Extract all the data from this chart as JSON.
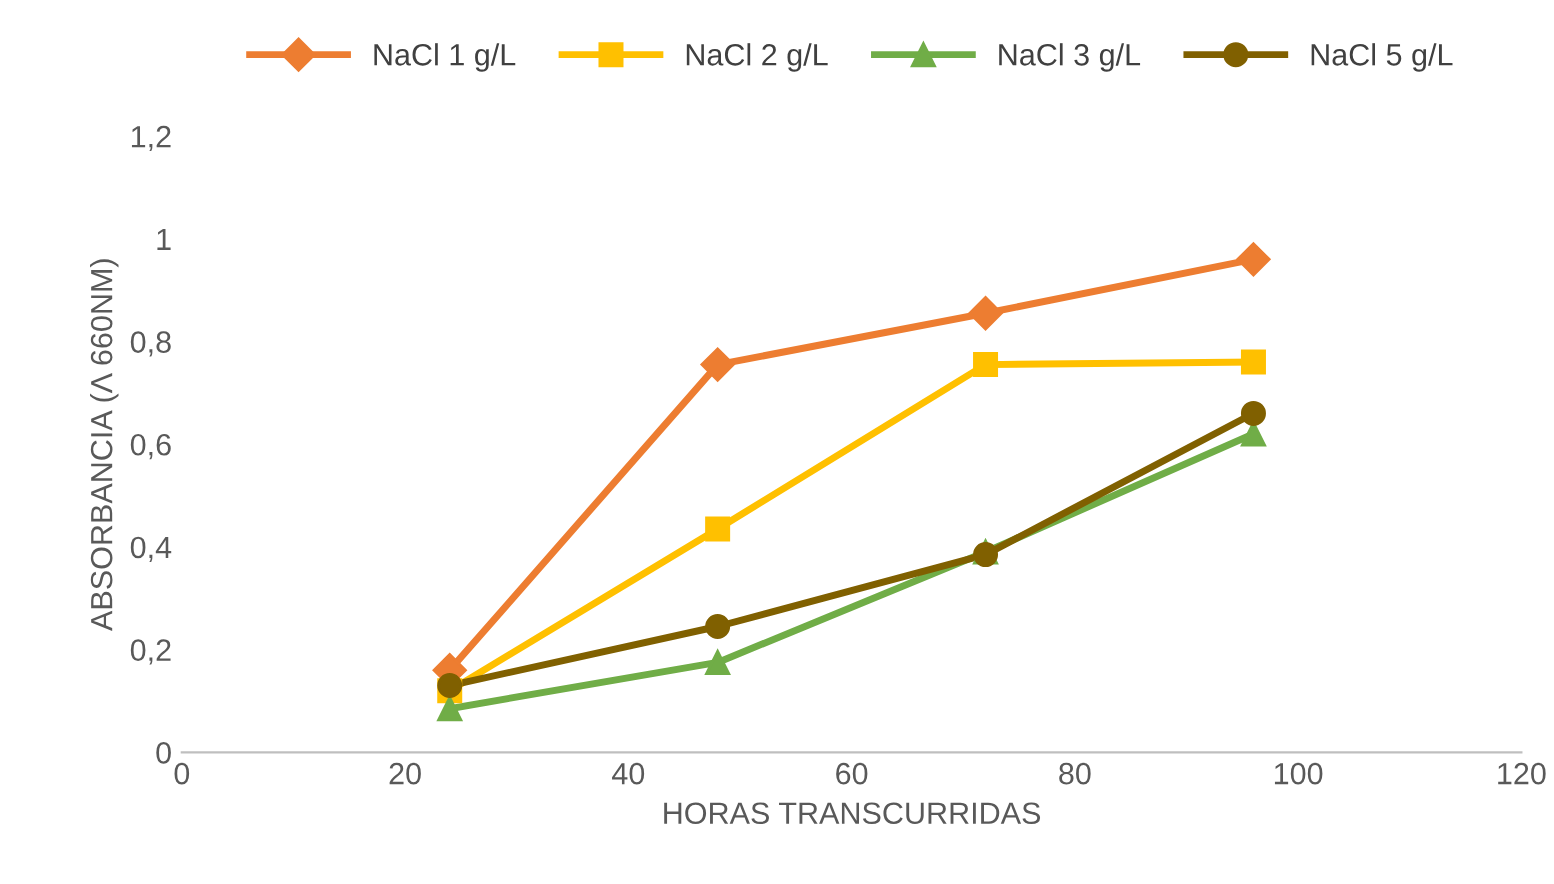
{
  "chart_data": {
    "type": "line",
    "xlabel": "HORAS TRANSCURRIDAS",
    "ylabel": "ABSORBANCIA (Λ 660NM)",
    "x": [
      24,
      48,
      72,
      96
    ],
    "series": [
      {
        "name": "NaCl 1 g/L",
        "color": "#ed7d31",
        "marker": "diamond",
        "values": [
          0.16,
          0.755,
          0.855,
          0.96
        ]
      },
      {
        "name": "NaCl 2 g/L",
        "color": "#ffc000",
        "marker": "square",
        "values": [
          0.12,
          0.435,
          0.755,
          0.76
        ]
      },
      {
        "name": "NaCl 3 g/L",
        "color": "#70ad47",
        "marker": "triangle",
        "values": [
          0.085,
          0.175,
          0.39,
          0.62
        ]
      },
      {
        "name": "NaCl 5 g/L",
        "color": "#806000",
        "marker": "circle",
        "values": [
          0.13,
          0.245,
          0.385,
          0.66
        ]
      }
    ],
    "xlim": [
      0,
      120
    ],
    "xticks": [
      0,
      20,
      40,
      60,
      80,
      100,
      120
    ],
    "ylim": [
      0,
      1.2
    ],
    "yticks": [
      0,
      {
        "value": 0.2,
        "label": "0,2"
      },
      {
        "value": 0.4,
        "label": "0,4"
      },
      {
        "value": 0.6,
        "label": "0,6"
      },
      {
        "value": 0.8,
        "label": "0,8"
      },
      1,
      {
        "value": 1.2,
        "label": "1,2"
      }
    ],
    "grid": false,
    "legend": "top",
    "line_style": "solid"
  }
}
